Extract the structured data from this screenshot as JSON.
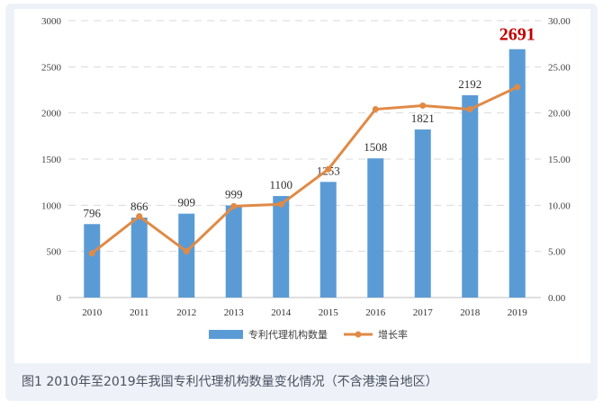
{
  "caption": "图1 2010年至2019年我国专利代理机构数量变化情况（不含港澳台地区）",
  "chart_data": {
    "type": "bar",
    "categories": [
      "2010",
      "2011",
      "2012",
      "2013",
      "2014",
      "2015",
      "2016",
      "2017",
      "2018",
      "2019"
    ],
    "series": [
      {
        "name": "专利代理机构数量",
        "type": "bar",
        "axis": "left",
        "values": [
          796,
          866,
          909,
          999,
          1100,
          1253,
          1508,
          1821,
          2192,
          2691
        ],
        "data_labels": [
          "796",
          "866",
          "909",
          "999",
          "1100",
          "1253",
          "1508",
          "1821",
          "2192",
          "2691"
        ],
        "color": "#5b9bd5"
      },
      {
        "name": "增长率",
        "type": "line",
        "axis": "right",
        "values": [
          4.8,
          8.8,
          5.0,
          9.9,
          10.1,
          13.9,
          20.4,
          20.8,
          20.4,
          22.8
        ],
        "color": "#e08a46"
      }
    ],
    "ylim": [
      0,
      3000
    ],
    "y_ticks": [
      "0",
      "500",
      "1000",
      "1500",
      "2000",
      "2500",
      "3000"
    ],
    "y2lim": [
      0,
      30
    ],
    "y2_ticks": [
      "0.00",
      "5.00",
      "10.00",
      "15.00",
      "20.00",
      "25.00",
      "30.00"
    ],
    "grid": true,
    "legend_position": "bottom",
    "highlight_color": "#c00000"
  }
}
